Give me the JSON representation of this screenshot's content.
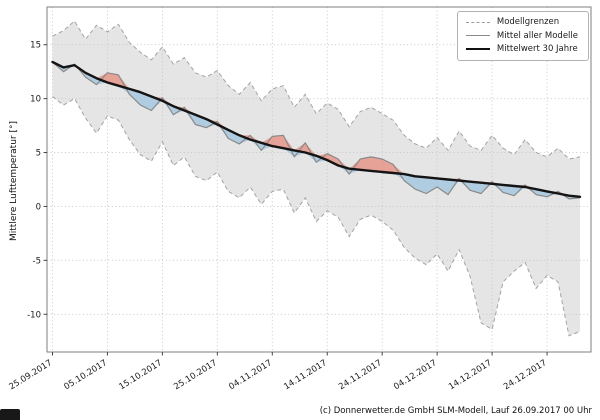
{
  "figure": {
    "caption": "(c) Donnerwetter.de GmbH SLM-Modell, Lauf 26.09.2017 00 Uhr"
  },
  "chart_data": {
    "type": "line",
    "title": "",
    "xlabel": "",
    "ylabel": "Mittlere Lufttemperatur [°]",
    "ylim": [
      -13.5,
      18.5
    ],
    "yticks": [
      -10,
      -5,
      0,
      5,
      10,
      15
    ],
    "xlim_days": [
      -1,
      98
    ],
    "grid": true,
    "legend_position": "upper right",
    "x_days": [
      0,
      2,
      4,
      6,
      8,
      10,
      12,
      14,
      16,
      18,
      20,
      22,
      24,
      26,
      28,
      30,
      32,
      34,
      36,
      38,
      40,
      42,
      44,
      46,
      48,
      50,
      52,
      54,
      56,
      58,
      60,
      62,
      64,
      66,
      68,
      70,
      72,
      74,
      76,
      78,
      80,
      82,
      84,
      86,
      88,
      90,
      92,
      94,
      96
    ],
    "xticks": [
      {
        "day": 0,
        "label": "25.09.2017"
      },
      {
        "day": 10,
        "label": "05.10.2017"
      },
      {
        "day": 20,
        "label": "15.10.2017"
      },
      {
        "day": 30,
        "label": "25.10.2017"
      },
      {
        "day": 40,
        "label": "04.11.2017"
      },
      {
        "day": 50,
        "label": "14.11.2017"
      },
      {
        "day": 60,
        "label": "24.11.2017"
      },
      {
        "day": 70,
        "label": "04.12.2017"
      },
      {
        "day": 80,
        "label": "14.12.2017"
      },
      {
        "day": 90,
        "label": "24.12.2017"
      }
    ],
    "series": [
      {
        "name": "Modellgrenzen (obere Grenze)",
        "role": "upper_bound",
        "values": [
          15.8,
          16.3,
          17.2,
          15.5,
          16.8,
          16.2,
          16.9,
          15.2,
          14.3,
          13.6,
          14.8,
          13.2,
          13.8,
          12.4,
          12.0,
          12.6,
          11.2,
          10.4,
          11.5,
          9.8,
          10.9,
          11.2,
          9.2,
          10.4,
          8.6,
          9.6,
          9.0,
          7.4,
          8.8,
          9.2,
          8.6,
          8.0,
          6.6,
          5.8,
          5.4,
          6.4,
          5.2,
          7.0,
          5.6,
          5.2,
          6.6,
          5.4,
          4.8,
          6.2,
          5.0,
          4.6,
          5.4,
          4.4,
          4.6
        ]
      },
      {
        "name": "Modellgrenzen (untere Grenze)",
        "role": "lower_bound",
        "values": [
          10.2,
          9.4,
          10.0,
          8.2,
          6.8,
          8.4,
          8.0,
          6.2,
          4.8,
          4.2,
          6.0,
          3.8,
          4.6,
          2.8,
          2.4,
          3.2,
          1.4,
          0.8,
          1.8,
          0.2,
          1.4,
          1.6,
          -0.6,
          0.8,
          -1.4,
          -0.4,
          -1.0,
          -2.8,
          -1.2,
          -0.8,
          -1.4,
          -2.2,
          -3.8,
          -4.8,
          -5.4,
          -4.4,
          -6.0,
          -4.0,
          -6.5,
          -10.8,
          -11.4,
          -7.0,
          -6.0,
          -5.2,
          -7.6,
          -6.4,
          -7.0,
          -12.0,
          -11.6
        ]
      },
      {
        "name": "Mittel aller Modelle",
        "role": "model_mean",
        "values": [
          13.4,
          12.5,
          13.2,
          12.0,
          11.3,
          12.4,
          12.2,
          10.4,
          9.4,
          8.9,
          10.1,
          8.5,
          9.2,
          7.6,
          7.3,
          7.9,
          6.3,
          5.8,
          6.6,
          5.2,
          6.5,
          6.6,
          4.6,
          5.9,
          4.1,
          4.9,
          4.4,
          3.0,
          4.4,
          4.6,
          4.4,
          3.9,
          2.4,
          1.6,
          1.2,
          1.8,
          1.1,
          2.6,
          1.5,
          1.2,
          2.3,
          1.3,
          1.0,
          2.0,
          1.1,
          0.9,
          1.4,
          0.7,
          0.8
        ]
      },
      {
        "name": "Mittelwert 30 Jahre",
        "role": "climate_mean",
        "values": [
          13.4,
          12.9,
          13.1,
          12.4,
          11.9,
          11.5,
          11.2,
          10.9,
          10.6,
          10.2,
          9.8,
          9.3,
          8.9,
          8.5,
          8.1,
          7.6,
          7.1,
          6.6,
          6.2,
          5.9,
          5.6,
          5.4,
          5.2,
          5.0,
          4.7,
          4.3,
          3.8,
          3.5,
          3.4,
          3.3,
          3.2,
          3.1,
          3.0,
          2.8,
          2.7,
          2.6,
          2.5,
          2.4,
          2.3,
          2.2,
          2.1,
          2.0,
          1.9,
          1.8,
          1.6,
          1.4,
          1.2,
          1.0,
          0.9
        ]
      }
    ],
    "legend": [
      {
        "label": "Modellgrenzen",
        "style": "dashed-gray"
      },
      {
        "label": "Mittel aller Modelle",
        "style": "solid-gray"
      },
      {
        "label": "Mittelwert 30 Jahre",
        "style": "solid-black-thick"
      }
    ],
    "colors": {
      "band_fill": "#dcdcdc",
      "band_edge": "#a3a3a3",
      "model_line": "#8a8a8a",
      "climate_line": "#141414",
      "warm_fill": "#e59a8e",
      "cold_fill": "#a9c9e0",
      "grid": "#c4c4c4"
    }
  }
}
